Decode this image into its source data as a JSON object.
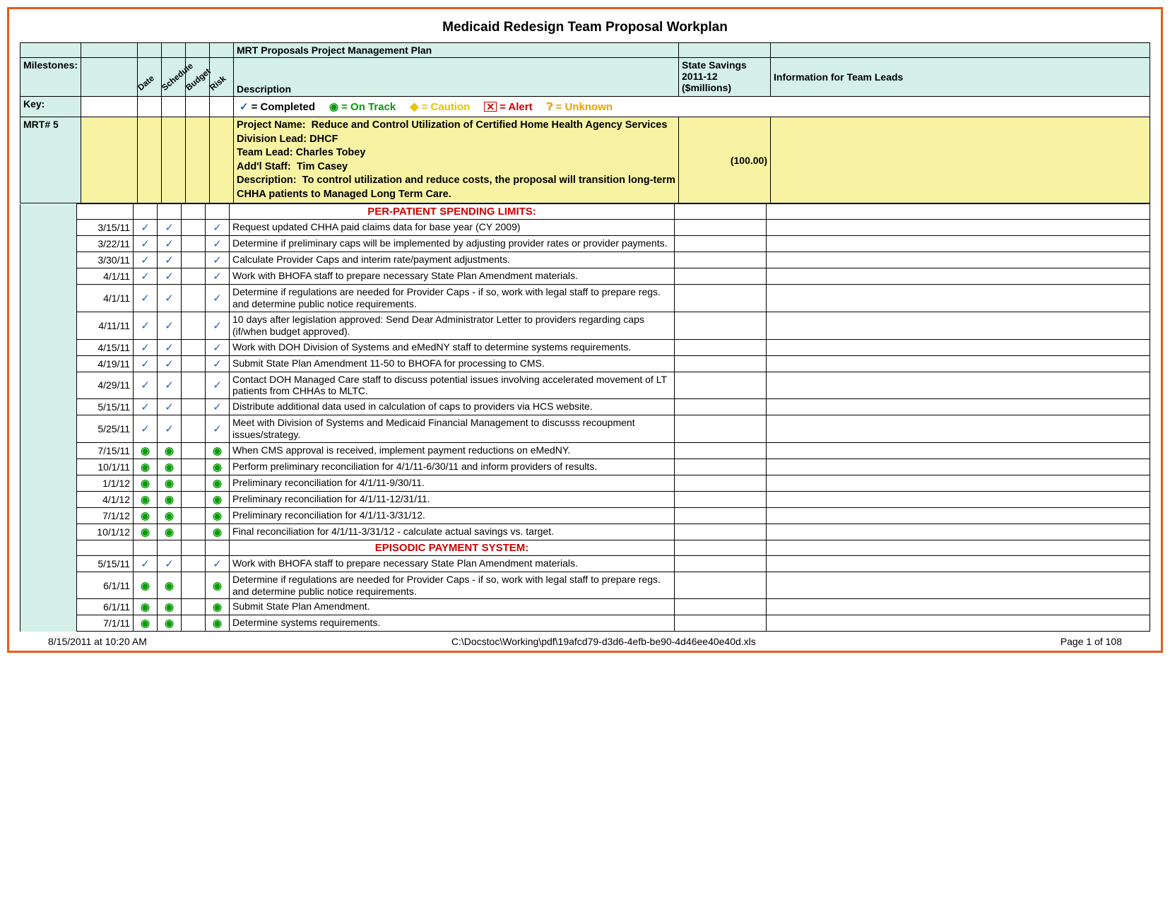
{
  "title": "Medicaid Redesign Team Proposal Workplan",
  "headers": {
    "mgmt_plan": "MRT Proposals Project Management Plan",
    "milestones": "Milestones:",
    "diag_cols": [
      "Date",
      "Schedule",
      "Budget",
      "Risk"
    ],
    "description": "Description",
    "savings": "State Savings 2011-12 ($millions)",
    "info": "Information for Team Leads",
    "key": "Key:",
    "mrt_num": "MRT# 5"
  },
  "key_legend": [
    {
      "icon": "check",
      "label": "= Completed",
      "color": "#1f5fbf"
    },
    {
      "icon": "ontrack",
      "label": "= On Track",
      "color": "#0a9a0a"
    },
    {
      "icon": "caution",
      "label": "= Caution",
      "color": "#e8c400"
    },
    {
      "icon": "alert",
      "label": "= Alert",
      "color": "#d00000"
    },
    {
      "icon": "unknown",
      "label": "= Unknown",
      "color": "#f0a000"
    }
  ],
  "project": {
    "name_label": "Project Name:",
    "name": "Reduce and Control Utilization of Certified Home Health Agency Services",
    "division_label": "Division Lead:",
    "division": "DHCF",
    "team_label": "Team Lead:",
    "team": "Charles Tobey",
    "staff_label": "Add'l Staff:",
    "staff": "Tim Casey",
    "desc_label": "Description:",
    "desc": "To control utilization and reduce costs, the proposal will transition long-term CHHA patients to Managed Long Term Care.",
    "savings": "(100.00)"
  },
  "sections": [
    {
      "header": "PER-PATIENT SPENDING LIMITS:",
      "tasks": [
        {
          "date": "3/15/11",
          "s": [
            "check",
            "check",
            "",
            "check"
          ],
          "desc": "Request updated CHHA paid claims data for base year (CY 2009)"
        },
        {
          "date": "3/22/11",
          "s": [
            "check",
            "check",
            "",
            "check"
          ],
          "desc": "Determine if preliminary caps will be implemented by adjusting provider rates or provider payments."
        },
        {
          "date": "3/30/11",
          "s": [
            "check",
            "check",
            "",
            "check"
          ],
          "desc": "Calculate Provider Caps and interim rate/payment adjustments."
        },
        {
          "date": "4/1/11",
          "s": [
            "check",
            "check",
            "",
            "check"
          ],
          "desc": "Work with BHOFA staff to prepare necessary State Plan Amendment materials."
        },
        {
          "date": "4/1/11",
          "s": [
            "check",
            "check",
            "",
            "check"
          ],
          "desc": "Determine if regulations are needed for Provider Caps - if so, work with legal staff to prepare regs. and determine public notice requirements."
        },
        {
          "date": "4/11/11",
          "s": [
            "check",
            "check",
            "",
            "check"
          ],
          "desc": "10 days after legislation approved:  Send Dear Administrator Letter to providers regarding caps (if/when budget approved)."
        },
        {
          "date": "4/15/11",
          "s": [
            "check",
            "check",
            "",
            "check"
          ],
          "desc": "Work with DOH Division of Systems and eMedNY staff to determine systems requirements."
        },
        {
          "date": "4/19/11",
          "s": [
            "check",
            "check",
            "",
            "check"
          ],
          "desc": "Submit State Plan Amendment 11-50 to BHOFA for processing to CMS."
        },
        {
          "date": "4/29/11",
          "s": [
            "check",
            "check",
            "",
            "check"
          ],
          "desc": "Contact DOH Managed Care staff to discuss potential issues involving accelerated movement of LT patients from CHHAs to MLTC."
        },
        {
          "date": "5/15/11",
          "s": [
            "check",
            "check",
            "",
            "check"
          ],
          "desc": "Distribute additional data used in calculation of caps to providers via HCS website."
        },
        {
          "date": "5/25/11",
          "s": [
            "check",
            "check",
            "",
            "check"
          ],
          "desc": "Meet with Division of Systems and Medicaid Financial Management to discusss recoupment issues/strategy."
        },
        {
          "date": "7/15/11",
          "s": [
            "ontrack",
            "ontrack",
            "",
            "ontrack"
          ],
          "desc": "When CMS approval is received, implement payment reductions on eMedNY."
        },
        {
          "date": "10/1/11",
          "s": [
            "ontrack",
            "ontrack",
            "",
            "ontrack"
          ],
          "desc": "Perform preliminary reconciliation for 4/1/11-6/30/11 and inform providers of results."
        },
        {
          "date": "1/1/12",
          "s": [
            "ontrack",
            "ontrack",
            "",
            "ontrack"
          ],
          "desc": "Preliminary reconciliation for 4/1/11-9/30/11."
        },
        {
          "date": "4/1/12",
          "s": [
            "ontrack",
            "ontrack",
            "",
            "ontrack"
          ],
          "desc": "Preliminary reconciliation for 4/1/11-12/31/11."
        },
        {
          "date": "7/1/12",
          "s": [
            "ontrack",
            "ontrack",
            "",
            "ontrack"
          ],
          "desc": "Preliminary reconciliation for 4/1/11-3/31/12."
        },
        {
          "date": "10/1/12",
          "s": [
            "ontrack",
            "ontrack",
            "",
            "ontrack"
          ],
          "desc": "Final reconciliation for 4/1/11-3/31/12 - calculate actual savings vs. target."
        }
      ]
    },
    {
      "header": "EPISODIC PAYMENT SYSTEM:",
      "tasks": [
        {
          "date": "5/15/11",
          "s": [
            "check",
            "check",
            "",
            "check"
          ],
          "desc": "Work with BHOFA staff to prepare necessary State Plan Amendment materials."
        },
        {
          "date": "6/1/11",
          "s": [
            "ontrack",
            "ontrack",
            "",
            "ontrack"
          ],
          "desc": "Determine if regulations are needed for Provider Caps - if so, work with legal staff to prepare regs. and determine public notice requirements."
        },
        {
          "date": "6/1/11",
          "s": [
            "ontrack",
            "ontrack",
            "",
            "ontrack"
          ],
          "desc": "Submit State Plan Amendment."
        },
        {
          "date": "7/1/11",
          "s": [
            "ontrack",
            "ontrack",
            "",
            "ontrack"
          ],
          "desc": "Determine systems requirements."
        }
      ]
    }
  ],
  "footer": {
    "left": "8/15/2011 at 10:20 AM",
    "center": "C:\\Docstoc\\Working\\pdf\\19afcd79-d3d6-4efb-be90-4d46ee40e40d.xls",
    "right": "Page 1 of 108"
  },
  "colors": {
    "border_frame": "#e85a1c",
    "header_bg": "#d4f0e8",
    "yellow_bg": "#f7f3a3",
    "section_red": "#d00000",
    "check_blue": "#1f5fbf",
    "ontrack_green": "#0a9a0a"
  }
}
